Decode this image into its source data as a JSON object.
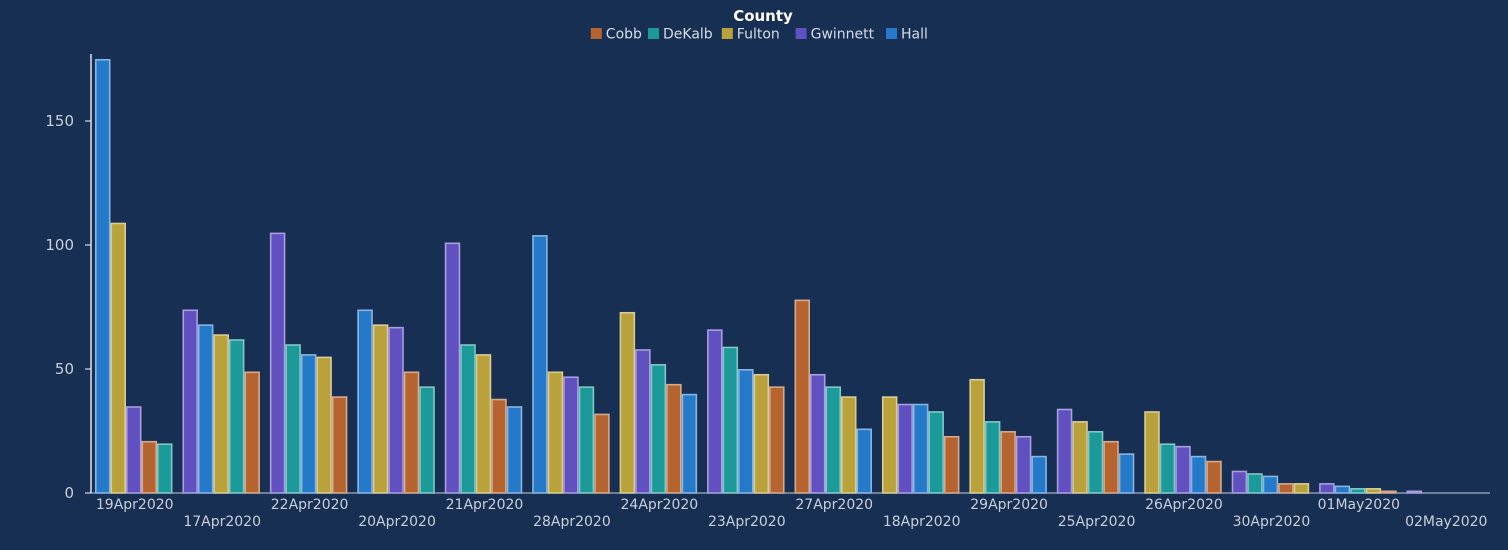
{
  "chart_data": {
    "type": "bar",
    "legend": {
      "title": "County",
      "placement": "top-center"
    },
    "series": [
      {
        "name": "Cobb",
        "color": "#b5642f"
      },
      {
        "name": "DeKalb",
        "color": "#1c9a99"
      },
      {
        "name": "Fulton",
        "color": "#b9a23c"
      },
      {
        "name": "Gwinnett",
        "color": "#6050c0"
      },
      {
        "name": "Hall",
        "color": "#2479c8"
      }
    ],
    "groups": [
      {
        "category": "19Apr2020",
        "bars": [
          {
            "series": "Hall",
            "value": 175
          },
          {
            "series": "Fulton",
            "value": 109
          },
          {
            "series": "Gwinnett",
            "value": 35
          },
          {
            "series": "Cobb",
            "value": 21
          },
          {
            "series": "DeKalb",
            "value": 20
          }
        ]
      },
      {
        "category": "17Apr2020",
        "bars": [
          {
            "series": "Gwinnett",
            "value": 74
          },
          {
            "series": "Hall",
            "value": 68
          },
          {
            "series": "Fulton",
            "value": 64
          },
          {
            "series": "DeKalb",
            "value": 62
          },
          {
            "series": "Cobb",
            "value": 49
          }
        ]
      },
      {
        "category": "22Apr2020",
        "bars": [
          {
            "series": "Gwinnett",
            "value": 105
          },
          {
            "series": "DeKalb",
            "value": 60
          },
          {
            "series": "Hall",
            "value": 56
          },
          {
            "series": "Fulton",
            "value": 55
          },
          {
            "series": "Cobb",
            "value": 39
          }
        ]
      },
      {
        "category": "20Apr2020",
        "bars": [
          {
            "series": "Hall",
            "value": 74
          },
          {
            "series": "Fulton",
            "value": 68
          },
          {
            "series": "Gwinnett",
            "value": 67
          },
          {
            "series": "Cobb",
            "value": 49
          },
          {
            "series": "DeKalb",
            "value": 43
          }
        ]
      },
      {
        "category": "21Apr2020",
        "bars": [
          {
            "series": "Gwinnett",
            "value": 101
          },
          {
            "series": "DeKalb",
            "value": 60
          },
          {
            "series": "Fulton",
            "value": 56
          },
          {
            "series": "Cobb",
            "value": 38
          },
          {
            "series": "Hall",
            "value": 35
          }
        ]
      },
      {
        "category": "28Apr2020",
        "bars": [
          {
            "series": "Hall",
            "value": 104
          },
          {
            "series": "Fulton",
            "value": 49
          },
          {
            "series": "Gwinnett",
            "value": 47
          },
          {
            "series": "DeKalb",
            "value": 43
          },
          {
            "series": "Cobb",
            "value": 32
          }
        ]
      },
      {
        "category": "24Apr2020",
        "bars": [
          {
            "series": "Fulton",
            "value": 73
          },
          {
            "series": "Gwinnett",
            "value": 58
          },
          {
            "series": "DeKalb",
            "value": 52
          },
          {
            "series": "Cobb",
            "value": 44
          },
          {
            "series": "Hall",
            "value": 40
          }
        ]
      },
      {
        "category": "23Apr2020",
        "bars": [
          {
            "series": "Gwinnett",
            "value": 66
          },
          {
            "series": "DeKalb",
            "value": 59
          },
          {
            "series": "Hall",
            "value": 50
          },
          {
            "series": "Fulton",
            "value": 48
          },
          {
            "series": "Cobb",
            "value": 43
          }
        ]
      },
      {
        "category": "27Apr2020",
        "bars": [
          {
            "series": "Cobb",
            "value": 78
          },
          {
            "series": "Gwinnett",
            "value": 48
          },
          {
            "series": "DeKalb",
            "value": 43
          },
          {
            "series": "Fulton",
            "value": 39
          },
          {
            "series": "Hall",
            "value": 26
          }
        ]
      },
      {
        "category": "18Apr2020",
        "bars": [
          {
            "series": "Fulton",
            "value": 39
          },
          {
            "series": "Gwinnett",
            "value": 36
          },
          {
            "series": "Hall",
            "value": 36
          },
          {
            "series": "DeKalb",
            "value": 33
          },
          {
            "series": "Cobb",
            "value": 23
          }
        ]
      },
      {
        "category": "29Apr2020",
        "bars": [
          {
            "series": "Fulton",
            "value": 46
          },
          {
            "series": "DeKalb",
            "value": 29
          },
          {
            "series": "Cobb",
            "value": 25
          },
          {
            "series": "Gwinnett",
            "value": 23
          },
          {
            "series": "Hall",
            "value": 15
          }
        ]
      },
      {
        "category": "25Apr2020",
        "bars": [
          {
            "series": "Gwinnett",
            "value": 34
          },
          {
            "series": "Fulton",
            "value": 29
          },
          {
            "series": "DeKalb",
            "value": 25
          },
          {
            "series": "Cobb",
            "value": 21
          },
          {
            "series": "Hall",
            "value": 16
          }
        ]
      },
      {
        "category": "26Apr2020",
        "bars": [
          {
            "series": "Fulton",
            "value": 33
          },
          {
            "series": "DeKalb",
            "value": 20
          },
          {
            "series": "Gwinnett",
            "value": 19
          },
          {
            "series": "Hall",
            "value": 15
          },
          {
            "series": "Cobb",
            "value": 13
          }
        ]
      },
      {
        "category": "30Apr2020",
        "bars": [
          {
            "series": "Gwinnett",
            "value": 9
          },
          {
            "series": "DeKalb",
            "value": 8
          },
          {
            "series": "Hall",
            "value": 7
          },
          {
            "series": "Cobb",
            "value": 4
          },
          {
            "series": "Fulton",
            "value": 4
          }
        ]
      },
      {
        "category": "01May2020",
        "bars": [
          {
            "series": "Gwinnett",
            "value": 4
          },
          {
            "series": "Hall",
            "value": 3
          },
          {
            "series": "DeKalb",
            "value": 2
          },
          {
            "series": "Fulton",
            "value": 2
          },
          {
            "series": "Cobb",
            "value": 1
          }
        ]
      },
      {
        "category": "02May2020",
        "bars": [
          {
            "series": "Gwinnett",
            "value": 1
          }
        ]
      }
    ],
    "y_ticks": [
      0,
      50,
      100,
      150
    ],
    "ylim": [
      0,
      177
    ],
    "xlabel": "",
    "ylabel": "",
    "grid": false
  }
}
